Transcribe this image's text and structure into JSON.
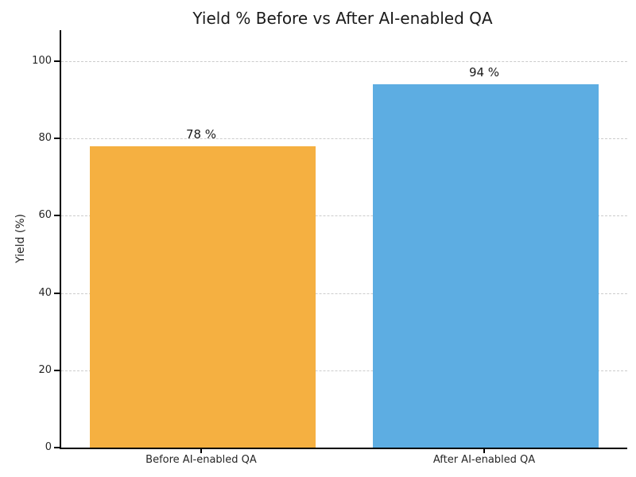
{
  "chart_data": {
    "type": "bar",
    "title": "Yield % Before vs After AI-enabled QA",
    "xlabel": "",
    "ylabel": "Yield (%)",
    "categories": [
      "Before AI-enabled QA",
      "After AI-enabled QA"
    ],
    "values": [
      78,
      94
    ],
    "bar_labels": [
      "78 %",
      "94 %"
    ],
    "bar_colors": [
      "#F5B041",
      "#5DADE2"
    ],
    "ylim": [
      0,
      108
    ],
    "yticks": [
      0,
      20,
      40,
      60,
      80,
      100
    ],
    "grid": "horizontal dashed",
    "grid_color": "#CCCCCC",
    "text_color": "#262626",
    "background": "#FFFFFF",
    "bar_width_fraction": 0.8,
    "legend": "none"
  }
}
